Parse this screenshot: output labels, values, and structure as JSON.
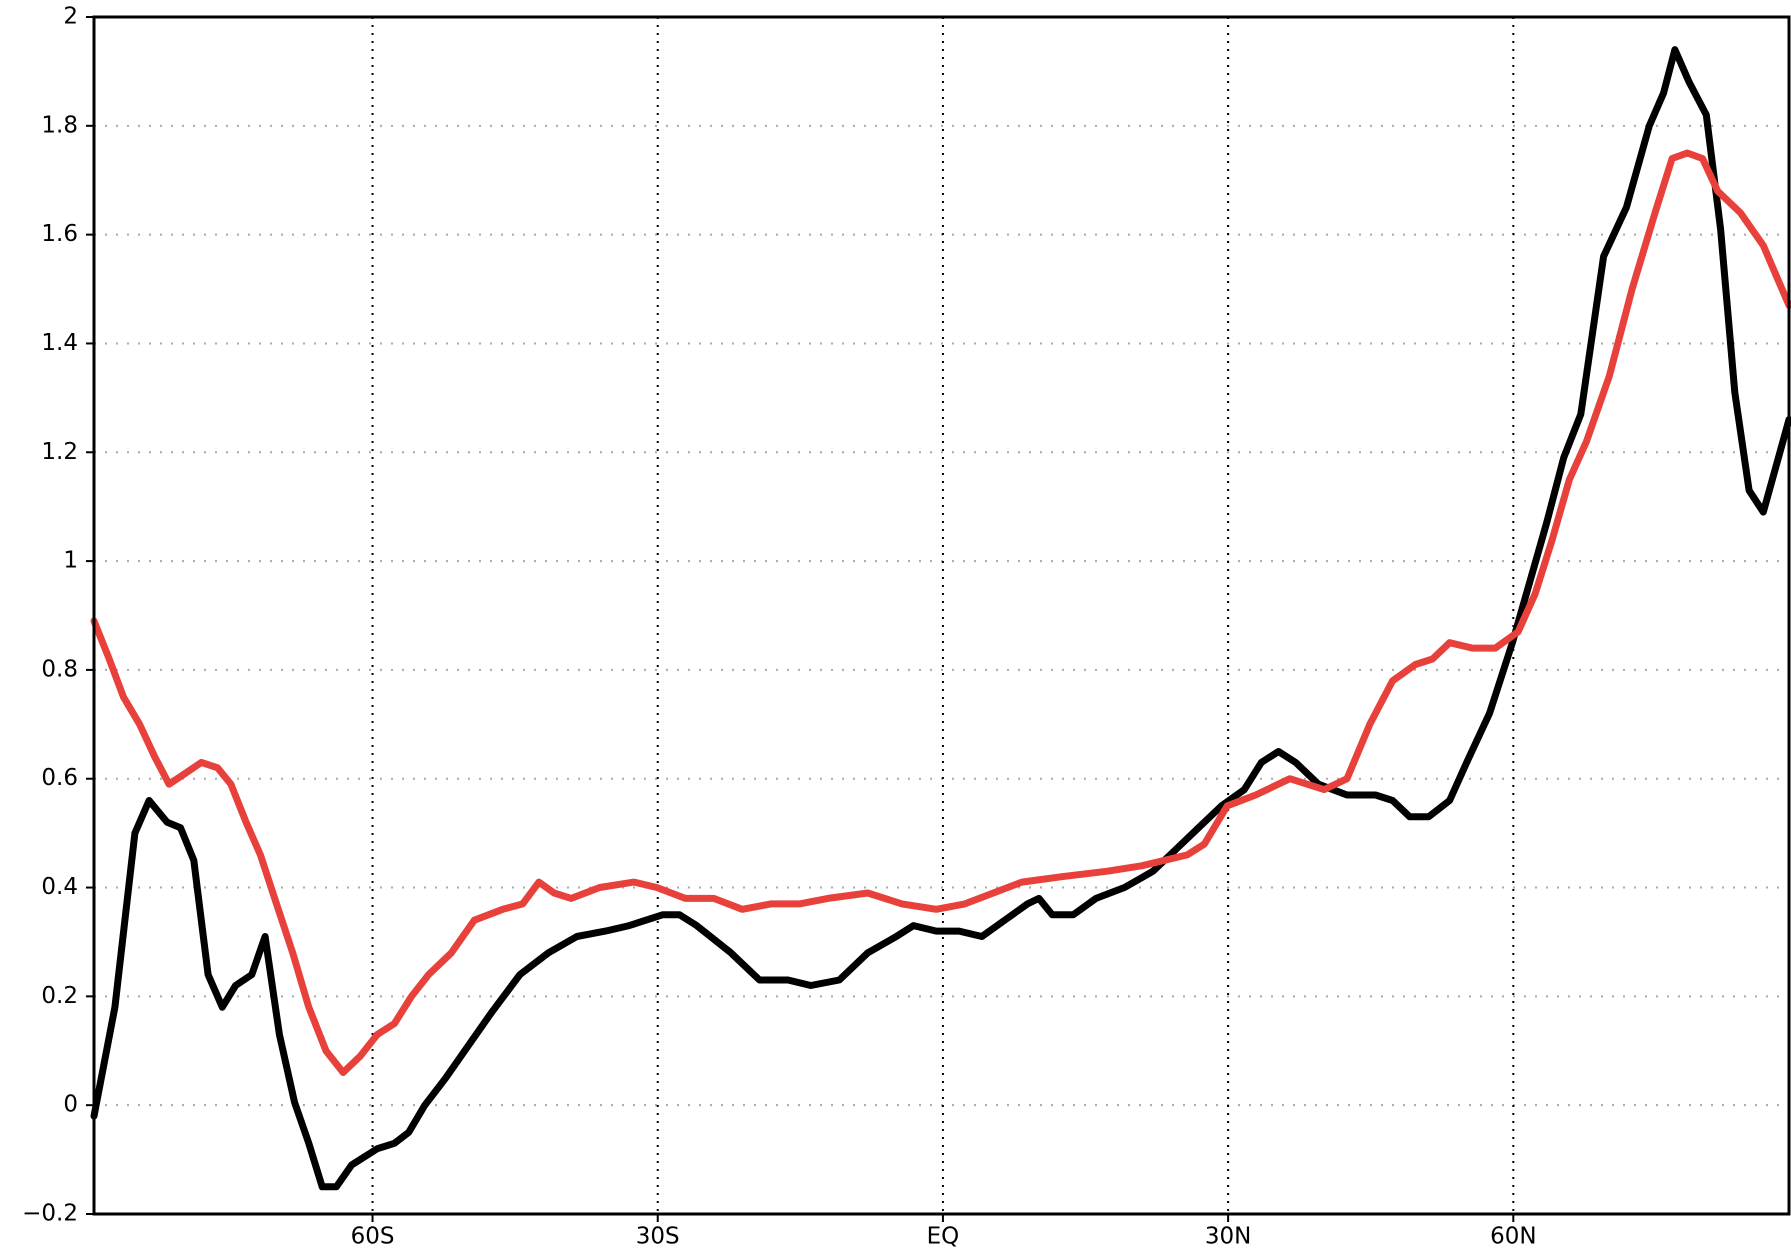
{
  "chart_data": {
    "type": "line",
    "xlim": [
      -89.3,
      89
    ],
    "ylim": [
      -0.2,
      2
    ],
    "xticks": [
      {
        "value": -60,
        "label": "60S"
      },
      {
        "value": -30,
        "label": "30S"
      },
      {
        "value": 0,
        "label": "EQ"
      },
      {
        "value": 30,
        "label": "30N"
      },
      {
        "value": 60,
        "label": "60N"
      }
    ],
    "yticks": [
      {
        "value": -0.2,
        "label": "−0.2"
      },
      0,
      0.2,
      0.4,
      0.6,
      0.8,
      1,
      1.2,
      1.4,
      1.6,
      1.8,
      2
    ],
    "grid": true,
    "series": [
      {
        "color": "#000000",
        "x": [
          -89.3,
          -87.1,
          -85,
          -83.5,
          -81.6,
          -80.2,
          -78.8,
          -77.3,
          -75.8,
          -74.4,
          -72.7,
          -71.3,
          -69.8,
          -68.2,
          -66.7,
          -65.3,
          -63.8,
          -62.2,
          -59.5,
          -57.7,
          -56.2,
          -54.5,
          -52.3,
          -49.9,
          -47.5,
          -44.5,
          -41.5,
          -38.5,
          -35.5,
          -33,
          -29.5,
          -27.7,
          -25.9,
          -22.3,
          -19.3,
          -16.3,
          -13.9,
          -10.9,
          -7.9,
          -4.9,
          -3.1,
          -0.7,
          1.7,
          4.1,
          6.5,
          8.9,
          10.1,
          11.5,
          13.7,
          16.1,
          19.1,
          22.1,
          24.5,
          26.9,
          29.3,
          31.7,
          33.5,
          35.3,
          37.1,
          39.5,
          42.5,
          45.5,
          47.3,
          49.1,
          51.1,
          53.3,
          55.1,
          57.5,
          59.9,
          61.7,
          63.5,
          65.3,
          67.1,
          69.5,
          71.9,
          74.3,
          75.8,
          77,
          78.5,
          80.3,
          81.8,
          83.3,
          84.8,
          86.3,
          89
        ],
        "values": [
          -0.02,
          0.18,
          0.5,
          0.56,
          0.52,
          0.51,
          0.45,
          0.24,
          0.18,
          0.22,
          0.24,
          0.31,
          0.13,
          0.005,
          -0.07,
          -0.15,
          -0.15,
          -0.11,
          -0.08,
          -0.07,
          -0.05,
          0,
          0.05,
          0.11,
          0.17,
          0.24,
          0.28,
          0.31,
          0.32,
          0.33,
          0.35,
          0.35,
          0.33,
          0.28,
          0.23,
          0.23,
          0.22,
          0.23,
          0.28,
          0.31,
          0.33,
          0.32,
          0.32,
          0.31,
          0.34,
          0.37,
          0.38,
          0.35,
          0.35,
          0.38,
          0.4,
          0.43,
          0.47,
          0.51,
          0.55,
          0.58,
          0.63,
          0.65,
          0.63,
          0.59,
          0.57,
          0.57,
          0.56,
          0.53,
          0.53,
          0.56,
          0.63,
          0.72,
          0.85,
          0.96,
          1.07,
          1.19,
          1.27,
          1.56,
          1.65,
          1.8,
          1.86,
          1.94,
          1.88,
          1.82,
          1.61,
          1.31,
          1.13,
          1.09,
          1.26
        ]
      },
      {
        "color": "#e8413c",
        "x": [
          -89.3,
          -87.7,
          -86.2,
          -84.5,
          -82.9,
          -81.4,
          -79.7,
          -78,
          -76.3,
          -74.9,
          -73.3,
          -71.8,
          -70.1,
          -68.4,
          -66.7,
          -64.9,
          -63.1,
          -61.3,
          -59.5,
          -57.7,
          -55.9,
          -54.1,
          -51.7,
          -49.3,
          -46.3,
          -44.2,
          -42.5,
          -40.9,
          -39.1,
          -36.1,
          -32.5,
          -30.1,
          -27.1,
          -24.1,
          -21.1,
          -18.1,
          -15.1,
          -12.1,
          -7.9,
          -4.3,
          -0.7,
          2.3,
          5.3,
          8.3,
          12.5,
          17.3,
          20.9,
          25.7,
          27.5,
          29.9,
          32.9,
          36.5,
          40.1,
          42.5,
          44.9,
          47.3,
          49.7,
          51.5,
          53.3,
          55.7,
          58.1,
          60.5,
          62.3,
          64.1,
          65.9,
          67.7,
          70.1,
          72.5,
          74.9,
          76.7,
          78.3,
          79.9,
          81.5,
          83.9,
          86.3,
          89
        ],
        "values": [
          0.89,
          0.82,
          0.75,
          0.7,
          0.64,
          0.59,
          0.61,
          0.63,
          0.62,
          0.59,
          0.52,
          0.46,
          0.37,
          0.28,
          0.18,
          0.1,
          0.06,
          0.09,
          0.13,
          0.15,
          0.2,
          0.24,
          0.28,
          0.34,
          0.36,
          0.37,
          0.41,
          0.39,
          0.38,
          0.4,
          0.41,
          0.4,
          0.38,
          0.38,
          0.36,
          0.37,
          0.37,
          0.38,
          0.39,
          0.37,
          0.36,
          0.37,
          0.39,
          0.41,
          0.42,
          0.43,
          0.44,
          0.46,
          0.48,
          0.55,
          0.57,
          0.6,
          0.58,
          0.6,
          0.7,
          0.78,
          0.81,
          0.82,
          0.85,
          0.84,
          0.84,
          0.87,
          0.94,
          1.04,
          1.15,
          1.22,
          1.34,
          1.5,
          1.64,
          1.74,
          1.75,
          1.74,
          1.68,
          1.64,
          1.58,
          1.47
        ]
      }
    ]
  }
}
